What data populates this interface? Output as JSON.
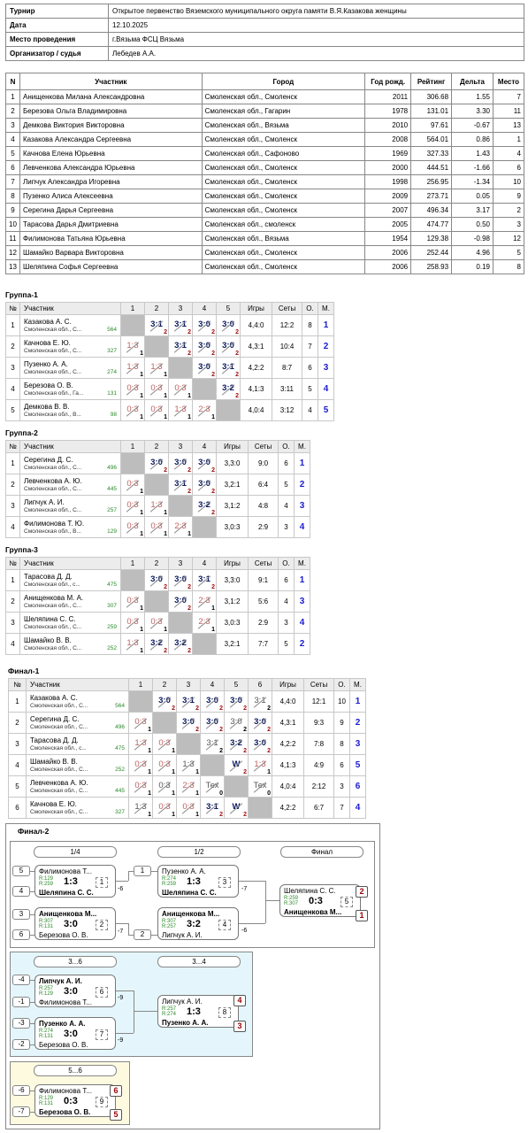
{
  "info": {
    "rows": [
      {
        "k": "Турнир",
        "v": "Открытое первенство Вяземского муниципального округа памяти В.Я.Казакова женщины"
      },
      {
        "k": "Дата",
        "v": "12.10.2025"
      },
      {
        "k": "Место проведения",
        "v": "г.Вязьма ФСЦ Вязьма"
      },
      {
        "k": "Организатор / судья",
        "v": "Лебедев А.А."
      }
    ]
  },
  "players": {
    "headers": [
      "N",
      "Участник",
      "Город",
      "Год рожд.",
      "Рейтинг",
      "Дельта",
      "Место"
    ],
    "rows": [
      [
        "1",
        "Анищенкова Милана Александровна",
        "Смоленская обл., Смоленск",
        "2011",
        "306.68",
        "1.55",
        "7"
      ],
      [
        "2",
        "Березова Ольга Владимировна",
        "Смоленская обл., Гагарин",
        "1978",
        "131.01",
        "3.30",
        "11"
      ],
      [
        "3",
        "Демкова Виктория Викторовна",
        "Смоленская обл., Вязьма",
        "2010",
        "97.61",
        "-0.67",
        "13"
      ],
      [
        "4",
        "Казакова Александра Сергеевна",
        "Смоленская обл., Смоленск",
        "2008",
        "564.01",
        "0.86",
        "1"
      ],
      [
        "5",
        "Качнова Елена Юрьевна",
        "Смоленская обл., Сафоново",
        "1969",
        "327.33",
        "1.43",
        "4"
      ],
      [
        "6",
        "Левченкова Александра Юрьевна",
        "Смоленская обл., Смоленск",
        "2000",
        "444.51",
        "-1.66",
        "6"
      ],
      [
        "7",
        "Липчук Александра Игоревна",
        "Смоленская обл., Смоленск",
        "1998",
        "256.95",
        "-1.34",
        "10"
      ],
      [
        "8",
        "Пузенко Алиса Алексеевна",
        "Смоленская обл., Смоленск",
        "2009",
        "273.71",
        "0.05",
        "9"
      ],
      [
        "9",
        "Серегина Дарья Сергеевна",
        "Смоленская обл., Смоленск",
        "2007",
        "496.34",
        "3.17",
        "2"
      ],
      [
        "10",
        "Тарасова Дарья Дмитриевна",
        "Смоленская обл., смоленск",
        "2005",
        "474.77",
        "0.50",
        "3"
      ],
      [
        "11",
        "Филимонова Татьяна Юрьевна",
        "Смоленская обл., Вязьма",
        "1954",
        "129.38",
        "-0.98",
        "12"
      ],
      [
        "12",
        "Шамайко Варвара Викторовна",
        "Смоленская обл., Смоленск",
        "2006",
        "252.44",
        "4.96",
        "5"
      ],
      [
        "13",
        "Шеляпина Софья Сергеевна",
        "Смоленская обл., Смоленск",
        "2006",
        "258.93",
        "0.19",
        "8"
      ]
    ]
  },
  "groups": [
    {
      "title": "Группа-1",
      "cols": [
        "№",
        "Участник",
        "1",
        "2",
        "3",
        "4",
        "5",
        "Игры",
        "Сеты",
        "О.",
        "М."
      ],
      "rows": [
        {
          "n": "1",
          "name": "Казакова А. С.",
          "city": "Смоленская обл., С...",
          "rating": "564",
          "cells": [
            "X",
            "3:1|2|w",
            "3:1|2|w",
            "3:0|2|w",
            "3:0|2|w"
          ],
          "games": "4,4:0",
          "sets": "12:2",
          "pts": "8",
          "place": "1"
        },
        {
          "n": "2",
          "name": "Качнова Е. Ю.",
          "city": "Смоленская обл., С...",
          "rating": "327",
          "cells": [
            "1:3|1|l",
            "X",
            "3:1|2|w",
            "3:0|2|w",
            "3:0|2|w"
          ],
          "games": "4,3:1",
          "sets": "10:4",
          "pts": "7",
          "place": "2"
        },
        {
          "n": "3",
          "name": "Пузенко А. А.",
          "city": "Смоленская обл., С...",
          "rating": "274",
          "cells": [
            "1:3|1|l",
            "1:3|1|l",
            "X",
            "3:0|2|w",
            "3:1|2|w"
          ],
          "games": "4,2:2",
          "sets": "8:7",
          "pts": "6",
          "place": "3"
        },
        {
          "n": "4",
          "name": "Березова О. В.",
          "city": "Смоленская обл., Га...",
          "rating": "131",
          "cells": [
            "0:3|1|l",
            "0:3|1|l",
            "0:3|1|l",
            "X",
            "3:2|2|w"
          ],
          "games": "4,1:3",
          "sets": "3:11",
          "pts": "5",
          "place": "4"
        },
        {
          "n": "5",
          "name": "Демкова В. В.",
          "city": "Смоленская обл., В...",
          "rating": "98",
          "cells": [
            "0:3|1|l",
            "0:3|1|l",
            "1:3|1|l",
            "2:3|1|l",
            "X"
          ],
          "games": "4,0:4",
          "sets": "3:12",
          "pts": "4",
          "place": "5"
        }
      ]
    },
    {
      "title": "Группа-2",
      "cols": [
        "№",
        "Участник",
        "1",
        "2",
        "3",
        "4",
        "Игры",
        "Сеты",
        "О.",
        "М."
      ],
      "rows": [
        {
          "n": "1",
          "name": "Серегина Д. С.",
          "city": "Смоленская обл., С...",
          "rating": "496",
          "cells": [
            "X",
            "3:0|2|w",
            "3:0|2|w",
            "3:0|2|w"
          ],
          "games": "3,3:0",
          "sets": "9:0",
          "pts": "6",
          "place": "1"
        },
        {
          "n": "2",
          "name": "Левченкова А. Ю.",
          "city": "Смоленская обл., С...",
          "rating": "445",
          "cells": [
            "0:3|1|l",
            "X",
            "3:1|2|w",
            "3:0|2|w"
          ],
          "games": "3,2:1",
          "sets": "6:4",
          "pts": "5",
          "place": "2"
        },
        {
          "n": "3",
          "name": "Липчук А. И.",
          "city": "Смоленская обл., С...",
          "rating": "257",
          "cells": [
            "0:3|1|l",
            "1:3|1|l",
            "X",
            "3:2|2|w"
          ],
          "games": "3,1:2",
          "sets": "4:8",
          "pts": "4",
          "place": "3"
        },
        {
          "n": "4",
          "name": "Филимонова Т. Ю.",
          "city": "Смоленская обл., В...",
          "rating": "129",
          "cells": [
            "0:3|1|l",
            "0:3|1|l",
            "2:3|1|l",
            "X"
          ],
          "games": "3,0:3",
          "sets": "2:9",
          "pts": "3",
          "place": "4"
        }
      ]
    },
    {
      "title": "Группа-3",
      "cols": [
        "№",
        "Участник",
        "1",
        "2",
        "3",
        "4",
        "Игры",
        "Сеты",
        "О.",
        "М."
      ],
      "rows": [
        {
          "n": "1",
          "name": "Тарасова Д. Д.",
          "city": "Смоленская обл., с...",
          "rating": "475",
          "cells": [
            "X",
            "3:0|2|w",
            "3:0|2|w",
            "3:1|2|w"
          ],
          "games": "3,3:0",
          "sets": "9:1",
          "pts": "6",
          "place": "1"
        },
        {
          "n": "2",
          "name": "Анищенкова М. А.",
          "city": "Смоленская обл., С...",
          "rating": "307",
          "cells": [
            "0:3|1|l",
            "X",
            "3:0|2|w",
            "2:3|1|l"
          ],
          "games": "3,1:2",
          "sets": "5:6",
          "pts": "4",
          "place": "3"
        },
        {
          "n": "3",
          "name": "Шеляпина С. С.",
          "city": "Смоленская обл., С...",
          "rating": "259",
          "cells": [
            "0:3|1|l",
            "0:3|1|l",
            "X",
            "2:3|1|l"
          ],
          "games": "3,0:3",
          "sets": "2:9",
          "pts": "3",
          "place": "4"
        },
        {
          "n": "4",
          "name": "Шамайко В. В.",
          "city": "Смоленская обл., С...",
          "rating": "252",
          "cells": [
            "1:3|1|l",
            "3:2|2|w",
            "3:2|2|w",
            "X"
          ],
          "games": "3,2:1",
          "sets": "7:7",
          "pts": "5",
          "place": "2"
        }
      ]
    },
    {
      "title": "Финал-1",
      "cols": [
        "№",
        "Участник",
        "1",
        "2",
        "3",
        "4",
        "5",
        "6",
        "Игры",
        "Сеты",
        "О.",
        "М."
      ],
      "rows": [
        {
          "n": "1",
          "name": "Казакова А. С.",
          "city": "Смоленская обл., С...",
          "rating": "564",
          "cells": [
            "X",
            "3:0|2|w",
            "3:1|2|w",
            "3:0|2|w",
            "3:0|2|w",
            "3:1|2|t"
          ],
          "games": "4,4:0",
          "sets": "12:1",
          "pts": "10",
          "place": "1"
        },
        {
          "n": "2",
          "name": "Серегина Д. С.",
          "city": "Смоленская обл., С...",
          "rating": "496",
          "cells": [
            "0:3|1|l",
            "X",
            "3:0|2|w",
            "3:0|2|w",
            "3:0|2|t",
            "3:0|2|w"
          ],
          "games": "4,3:1",
          "sets": "9:3",
          "pts": "9",
          "place": "2"
        },
        {
          "n": "3",
          "name": "Тарасова Д. Д.",
          "city": "Смоленская обл., с...",
          "rating": "475",
          "cells": [
            "1:3|1|l",
            "0:3|1|l",
            "X",
            "3:1|2|t",
            "3:2|2|w",
            "3:0|2|w"
          ],
          "games": "4,2:2",
          "sets": "7:8",
          "pts": "8",
          "place": "3"
        },
        {
          "n": "4",
          "name": "Шамайко В. В.",
          "city": "Смоленская обл., С...",
          "rating": "252",
          "cells": [
            "0:3|1|l",
            "0:3|1|l",
            "1:3|1|t",
            "X",
            "W|2|w",
            "1:3|1|l"
          ],
          "games": "4,1:3",
          "sets": "4:9",
          "pts": "6",
          "place": "5"
        },
        {
          "n": "5",
          "name": "Левченкова А. Ю.",
          "city": "Смоленская обл., С...",
          "rating": "445",
          "cells": [
            "0:3|1|l",
            "0:3|1|t",
            "2:3|1|l",
            "Тех|0|t",
            "X",
            "Тех|0|t"
          ],
          "games": "4,0:4",
          "sets": "2:12",
          "pts": "3",
          "place": "6"
        },
        {
          "n": "6",
          "name": "Качнова Е. Ю.",
          "city": "Смоленская обл., С...",
          "rating": "327",
          "cells": [
            "1:3|1|t",
            "0:3|1|l",
            "0:3|1|l",
            "3:1|2|w",
            "W|2|w",
            "X"
          ],
          "games": "4,2:2",
          "sets": "6:7",
          "pts": "7",
          "place": "4"
        }
      ]
    }
  ],
  "final2": {
    "title": "Финал-2",
    "rounds": [
      "1/4",
      "1/2",
      "Финал",
      "3...6",
      "3...4",
      "5...6"
    ],
    "seeds": [
      "5",
      "4",
      "3",
      "6",
      "1",
      "2",
      "-4",
      "-1",
      "-3",
      "-2",
      "-6",
      "-7"
    ],
    "losses": [
      "-6",
      "-7",
      "-7",
      "-6",
      "-9",
      "-9"
    ],
    "matches": [
      {
        "p1": "Филимонова Т...",
        "r1": "R:129",
        "p2": "Шеляпина С. С.",
        "r2": "R:259",
        "score": "1:3",
        "num": "1",
        "win": 2
      },
      {
        "p1": "Анищенкова М...",
        "r1": "R:307",
        "p2": "Березова О. В.",
        "r2": "R:131",
        "score": "3:0",
        "num": "2",
        "win": 1
      },
      {
        "p1": "Пузенко А. А.",
        "r1": "R:274",
        "p2": "Шеляпина С. С.",
        "r2": "R:259",
        "score": "1:3",
        "num": "3",
        "win": 2
      },
      {
        "p1": "Анищенкова М...",
        "r1": "R:307",
        "p2": "Липчук А. И.",
        "r2": "R:257",
        "score": "3:2",
        "num": "4",
        "win": 1
      },
      {
        "p1": "Шеляпина С. С.",
        "r1": "R:259",
        "p2": "Анищенкова М...",
        "r2": "R:307",
        "score": "0:3",
        "num": "5",
        "win": 2
      },
      {
        "p1": "Липчук А. И.",
        "r1": "R:257",
        "p2": "Филимонова Т...",
        "r2": "R:129",
        "score": "3:0",
        "num": "6",
        "win": 1
      },
      {
        "p1": "Пузенко А. А.",
        "r1": "R:274",
        "p2": "Березова О. В.",
        "r2": "R:131",
        "score": "3:0",
        "num": "7",
        "win": 1
      },
      {
        "p1": "Липчук А. И.",
        "r1": "R:257",
        "p2": "Пузенко А. А.",
        "r2": "R:274",
        "score": "1:3",
        "num": "8",
        "win": 2
      },
      {
        "p1": "Филимонова Т...",
        "r1": "R:129",
        "p2": "Березова О. В.",
        "r2": "R:131",
        "score": "0:3",
        "num": "9",
        "win": 2
      }
    ],
    "places": [
      "2",
      "1",
      "4",
      "3",
      "6",
      "5"
    ]
  },
  "colors": {
    "winner_score": "#0a1a60",
    "loser_score": "#c06060",
    "rating": "#2a8a2a",
    "place": "#1a1ad0",
    "panel_blue": "#e4f6fb",
    "panel_yellow": "#fdfae0"
  }
}
